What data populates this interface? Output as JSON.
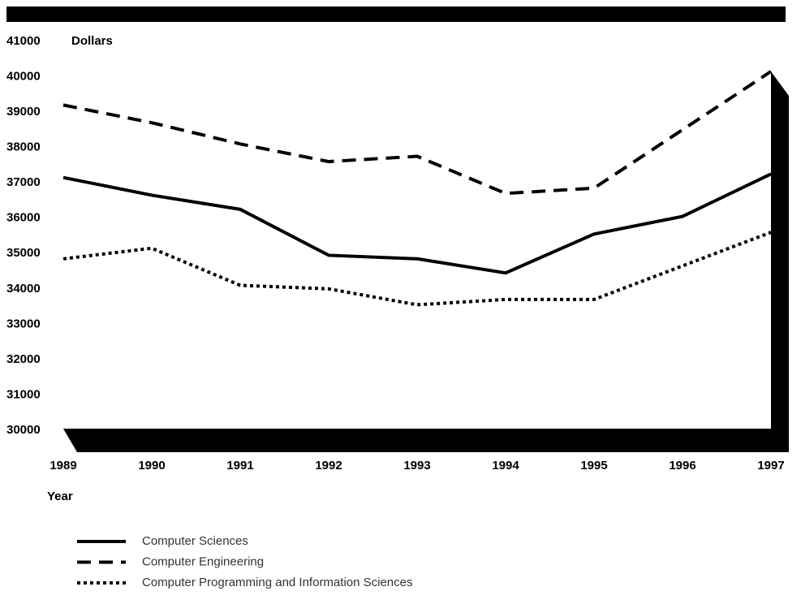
{
  "chart_data": {
    "type": "line",
    "y_label": "Dollars",
    "x_label": "Year",
    "categories": [
      "1989",
      "1990",
      "1991",
      "1992",
      "1993",
      "1994",
      "1995",
      "1996",
      "1997"
    ],
    "series": [
      {
        "name": "Computer Sciences",
        "color": "#000000",
        "dash": "solid",
        "values": [
          37150,
          36650,
          36250,
          34950,
          34850,
          34450,
          35550,
          36050,
          37250
        ]
      },
      {
        "name": "Computer Engineering",
        "color": "#000000",
        "dash": "dashed",
        "values": [
          39200,
          38700,
          38100,
          37600,
          37750,
          36700,
          36850,
          38500,
          40150
        ]
      },
      {
        "name": "Computer Programming and Information Sciences",
        "color": "#000000",
        "dash": "dotted",
        "values": [
          34850,
          35150,
          34100,
          34000,
          33550,
          33700,
          33700,
          34650,
          35600
        ]
      }
    ],
    "ylim": [
      30000,
      41000
    ],
    "yticks": [
      41000,
      40000,
      39000,
      38000,
      37000,
      36000,
      35000,
      34000,
      33000,
      32000,
      31000,
      30000
    ],
    "grid": false
  }
}
